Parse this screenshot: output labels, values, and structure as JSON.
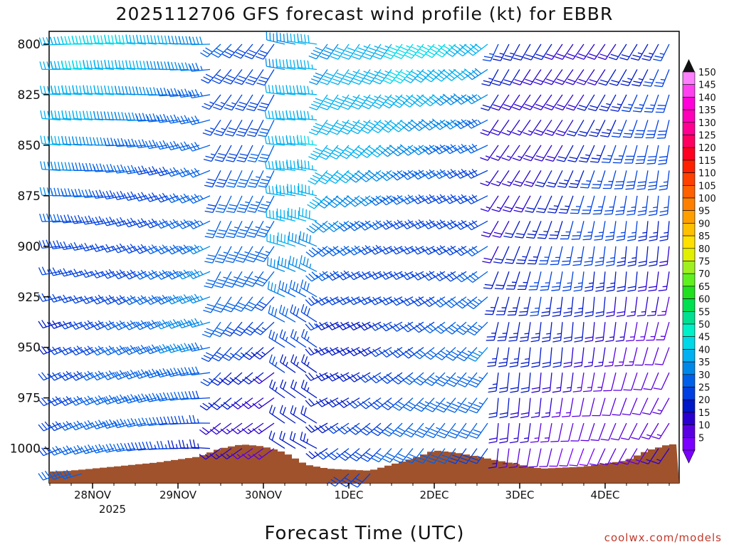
{
  "chart_data": {
    "type": "wind-barb-time-height",
    "title": "2025112706 GFS forecast wind profile (kt) for EBBR",
    "xlabel": "Forecast Time (UTC)",
    "ylabel": "",
    "x_ticks": [
      "28NOV",
      "29NOV",
      "30NOV",
      "1DEC",
      "2DEC",
      "3DEC",
      "4DEC"
    ],
    "x_year_label": "2025",
    "y_ticks": [
      800,
      825,
      850,
      875,
      900,
      925,
      950,
      975,
      1000
    ],
    "ylim": [
      795,
      1018
    ],
    "y_axis": "pressure (hPa), increasing downward",
    "time_range_hours": [
      "2025-11-27 06Z",
      "2025-12-04 18Z"
    ],
    "colorbar": {
      "label_values": [
        5,
        10,
        15,
        20,
        25,
        30,
        35,
        40,
        45,
        50,
        55,
        60,
        65,
        70,
        75,
        80,
        85,
        90,
        95,
        100,
        105,
        110,
        115,
        120,
        125,
        130,
        135,
        140,
        145,
        150
      ],
      "colors": [
        "#7b00ff",
        "#5a00e0",
        "#2a00d0",
        "#0018c8",
        "#0040e0",
        "#0060e8",
        "#0088e8",
        "#00b0f0",
        "#00d8e8",
        "#00f0c8",
        "#00e090",
        "#00e050",
        "#20e020",
        "#60f020",
        "#a0f020",
        "#e0f000",
        "#ffe000",
        "#ffc000",
        "#ffa000",
        "#ff8000",
        "#ff6000",
        "#ff4000",
        "#ff2000",
        "#ff0020",
        "#ff0060",
        "#ff0090",
        "#ff00b8",
        "#ff00d8",
        "#ff40f0",
        "#ff80ff"
      ]
    },
    "terrain_color": "#a0522d",
    "surface_pressure_profile": [
      {
        "t": 0,
        "p": 1012
      },
      {
        "t": 12,
        "p": 1011
      },
      {
        "t": 24,
        "p": 1009
      },
      {
        "t": 36,
        "p": 1007
      },
      {
        "t": 48,
        "p": 1004
      },
      {
        "t": 54,
        "p": 1000
      },
      {
        "t": 60,
        "p": 998
      },
      {
        "t": 66,
        "p": 999
      },
      {
        "t": 72,
        "p": 1002
      },
      {
        "t": 78,
        "p": 1008
      },
      {
        "t": 84,
        "p": 1010
      },
      {
        "t": 96,
        "p": 1011
      },
      {
        "t": 108,
        "p": 1005
      },
      {
        "t": 114,
        "p": 1001
      },
      {
        "t": 120,
        "p": 1002
      },
      {
        "t": 132,
        "p": 1006
      },
      {
        "t": 144,
        "p": 1010
      },
      {
        "t": 156,
        "p": 1009
      },
      {
        "t": 168,
        "p": 1006
      },
      {
        "t": 174,
        "p": 1001
      },
      {
        "t": 180,
        "p": 998
      }
    ],
    "wind_profile_by_time": [
      {
        "t_range": [
          0,
          54
        ],
        "dir_deg": 260,
        "speed_upper_kt": 40,
        "speed_lower_kt": 25
      },
      {
        "t_range": [
          54,
          72
        ],
        "dir_deg": 220,
        "speed_upper_kt": 35,
        "speed_lower_kt": 20
      },
      {
        "t_range": [
          72,
          84
        ],
        "dir_deg": 290,
        "speed_upper_kt": 45,
        "speed_lower_kt": 25
      },
      {
        "t_range": [
          84,
          132
        ],
        "dir_deg": 230,
        "speed_upper_kt": 40,
        "speed_lower_kt": 25
      },
      {
        "t_range": [
          132,
          180
        ],
        "dir_deg": 200,
        "speed_upper_kt": 25,
        "speed_lower_kt": 15
      }
    ]
  },
  "credit": "coolwx.com/models"
}
